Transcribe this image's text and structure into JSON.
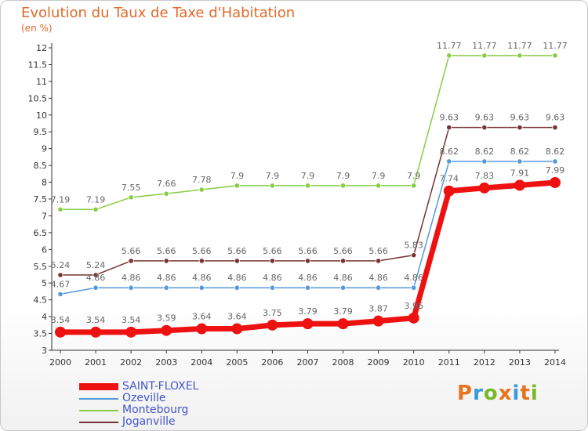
{
  "title": "Evolution du Taux de Taxe d'Habitation",
  "unit": "(en %)",
  "logo": {
    "text": "Proxiti",
    "letter_colors": [
      "#e8731f",
      "#3a9ad9",
      "#7ab829",
      "#e8731f",
      "#3a9ad9",
      "#e8731f",
      "#7ab829"
    ]
  },
  "chart_data": {
    "type": "line",
    "x": [
      "2000",
      "2001",
      "2002",
      "2003",
      "2004",
      "2005",
      "2006",
      "2007",
      "2008",
      "2009",
      "2010",
      "2011",
      "2012",
      "2013",
      "2014"
    ],
    "ylim": [
      3,
      12
    ],
    "yticks": [
      "3",
      "3.5",
      "4",
      "4.5",
      "5",
      "5.5",
      "6",
      "6.5",
      "7",
      "7.5",
      "8",
      "8.5",
      "9",
      "9.5",
      "10",
      "10.5",
      "11",
      "11.5",
      "12"
    ],
    "grid": false,
    "legend_position": "bottom-left",
    "series": [
      {
        "name": "Montebourg",
        "color": "#88cc44",
        "emphasis": false,
        "values": [
          7.19,
          7.19,
          7.55,
          7.66,
          7.78,
          7.9,
          7.9,
          7.9,
          7.9,
          7.9,
          7.9,
          11.77,
          11.77,
          11.77,
          11.77
        ],
        "labels": [
          "7.19",
          "7.19",
          "7.55",
          "7.66",
          "7.78",
          "7.9",
          "7.9",
          "7.9",
          "7.9",
          "7.9",
          "7.9",
          "11.77",
          "11.77",
          "11.77",
          "11.77"
        ]
      },
      {
        "name": "Joganville",
        "color": "#773333",
        "emphasis": false,
        "values": [
          5.24,
          5.24,
          5.66,
          5.66,
          5.66,
          5.66,
          5.66,
          5.66,
          5.66,
          5.66,
          5.83,
          9.63,
          9.63,
          9.63,
          9.63
        ],
        "labels": [
          "5.24",
          "5.24",
          "5.66",
          "5.66",
          "5.66",
          "5.66",
          "5.66",
          "5.66",
          "5.66",
          "5.66",
          "5.83",
          "9.63",
          "9.63",
          "9.63",
          "9.63"
        ]
      },
      {
        "name": "Ozeville",
        "color": "#5599dd",
        "emphasis": false,
        "values": [
          4.67,
          4.86,
          4.86,
          4.86,
          4.86,
          4.86,
          4.86,
          4.86,
          4.86,
          4.86,
          4.86,
          8.62,
          8.62,
          8.62,
          8.62
        ],
        "labels": [
          "4.67",
          "4.86",
          "4.86",
          "4.86",
          "4.86",
          "4.86",
          "4.86",
          "4.86",
          "4.86",
          "4.86",
          "4.86",
          "8.62",
          "8.62",
          "8.62",
          "8.62"
        ]
      },
      {
        "name": "SAINT-FLOXEL",
        "color": "#ee1111",
        "emphasis": true,
        "values": [
          3.54,
          3.54,
          3.54,
          3.59,
          3.64,
          3.64,
          3.75,
          3.79,
          3.79,
          3.87,
          3.96,
          7.74,
          7.83,
          7.91,
          7.99
        ],
        "labels": [
          "3.54",
          "3.54",
          "3.54",
          "3.59",
          "3.64",
          "3.64",
          "3.75",
          "3.79",
          "3.79",
          "3.87",
          "3.96",
          "7.74",
          "7.83",
          "7.91",
          "7.99"
        ]
      }
    ],
    "legend_order": [
      "SAINT-FLOXEL",
      "Ozeville",
      "Montebourg",
      "Joganville"
    ]
  }
}
